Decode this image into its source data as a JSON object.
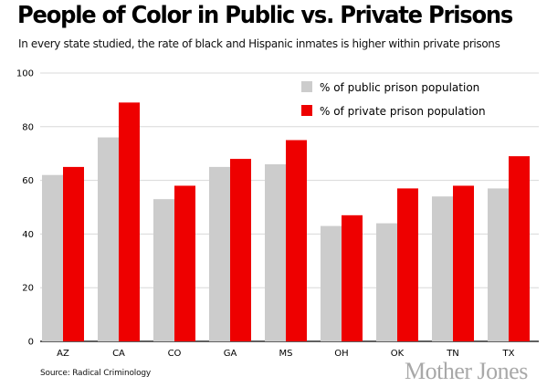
{
  "title": "People of Color in Public vs. Private Prisons",
  "subtitle": "In every state studied, the rate of black and Hispanic inmates is higher within private prisons",
  "source": "Source: Radical Criminology",
  "brand": "Mother Jones",
  "colors": {
    "public": "#cccccc",
    "private": "#ee0000",
    "grid": "#d8d8d8"
  },
  "chart_data": {
    "type": "bar",
    "categories": [
      "AZ",
      "CA",
      "CO",
      "GA",
      "MS",
      "OH",
      "OK",
      "TN",
      "TX"
    ],
    "series": [
      {
        "name": "% of public prison population",
        "values": [
          62,
          76,
          53,
          65,
          66,
          43,
          44,
          54,
          57
        ]
      },
      {
        "name": "% of private prison population",
        "values": [
          65,
          89,
          58,
          68,
          75,
          47,
          57,
          58,
          69
        ]
      }
    ],
    "yticks": [
      0,
      20,
      40,
      60,
      80,
      100
    ],
    "ylim": [
      0,
      100
    ],
    "grid": true,
    "legend_position": "top-right"
  }
}
